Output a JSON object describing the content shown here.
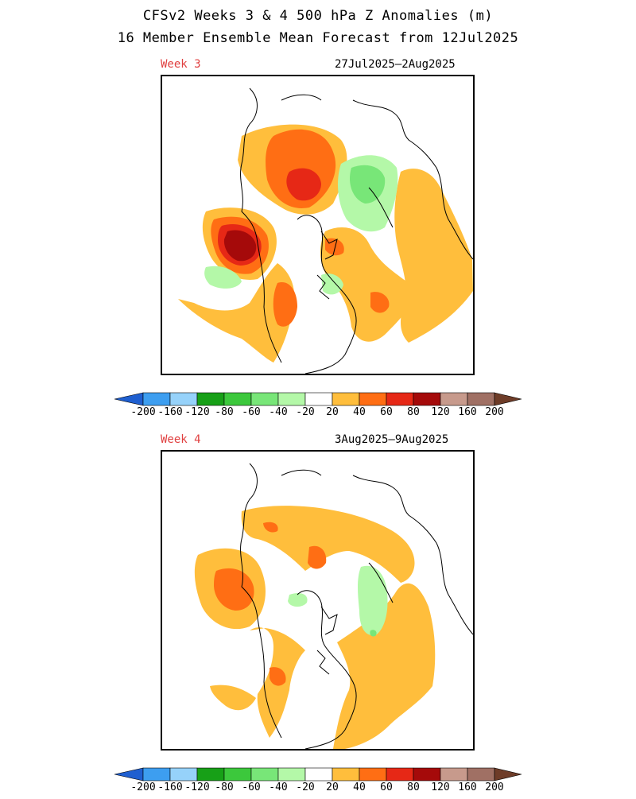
{
  "title": {
    "line1": "CFSv2 Weeks 3 & 4 500 hPa Z Anomalies (m)",
    "line2": "16 Member Ensemble Mean Forecast from 12Jul2025"
  },
  "panels": [
    {
      "week_label": "Week 3",
      "date_range": "27Jul2025–2Aug2025"
    },
    {
      "week_label": "Week 4",
      "date_range": "3Aug2025–9Aug2025"
    }
  ],
  "colorbar": {
    "ticks": [
      "-200",
      "-160",
      "-120",
      "-80",
      "-60",
      "-40",
      "-20",
      "20",
      "40",
      "60",
      "80",
      "120",
      "160",
      "200"
    ],
    "colors": {
      "lt-200": "#1f5fd0",
      "-200_-160": "#3d9ef0",
      "-160_-120": "#96d2fa",
      "-120_-80": "#17a017",
      "-80_-60": "#3cc83c",
      "-60_-40": "#78e678",
      "-40_-20": "#b4f8a8",
      "-20_20": "#ffffff",
      "20_40": "#ffbe3c",
      "40_60": "#ff6e14",
      "60_80": "#e62816",
      "80_120": "#a50a0a",
      "120_160": "#c79a8c",
      "160_200": "#a07064",
      "gt200": "#6e3c28"
    }
  }
}
